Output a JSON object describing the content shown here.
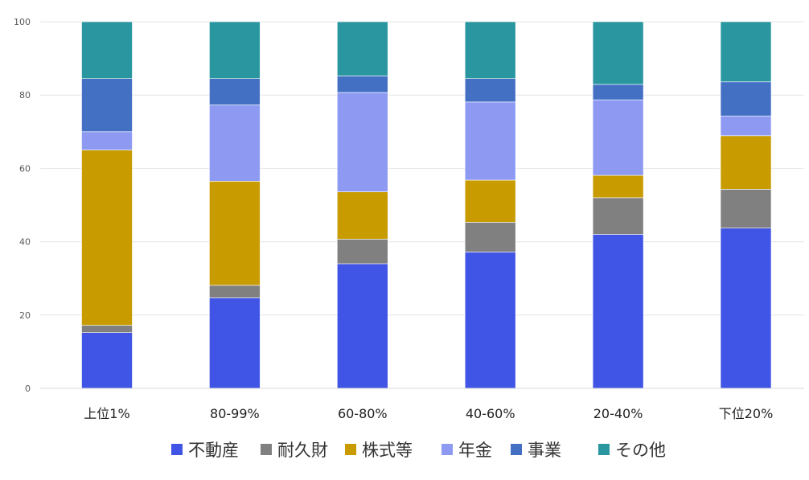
{
  "chart_data": {
    "type": "bar",
    "stacked": true,
    "title": "",
    "xlabel": "",
    "ylabel": "",
    "ylim": [
      0,
      100
    ],
    "yticks": [
      "0",
      "20",
      "40",
      "60",
      "80",
      "100"
    ],
    "grid": true,
    "legend_position": "bottom",
    "categories": [
      "上位1%",
      "80-99%",
      "60-80%",
      "40-60%",
      "20-40%",
      "下位20%"
    ],
    "series": [
      {
        "name": "不動産",
        "color": "#4055e5",
        "values": [
          15.2,
          24.7,
          34.0,
          37.2,
          42.0,
          43.7
        ]
      },
      {
        "name": "耐久財",
        "color": "#808080",
        "values": [
          2.0,
          3.4,
          6.7,
          8.1,
          10.0,
          10.6
        ]
      },
      {
        "name": "株式等",
        "color": "#c89b00",
        "values": [
          47.8,
          28.4,
          12.9,
          11.5,
          6.1,
          14.6
        ]
      },
      {
        "name": "年金",
        "color": "#8e9af2",
        "values": [
          5.0,
          20.8,
          27.1,
          21.3,
          20.6,
          5.4
        ]
      },
      {
        "name": "事業",
        "color": "#4470c4",
        "values": [
          14.5,
          7.2,
          4.5,
          6.4,
          4.2,
          9.3
        ]
      },
      {
        "name": "その他",
        "color": "#2a97a0",
        "values": [
          15.5,
          15.5,
          14.8,
          15.5,
          17.1,
          16.4
        ]
      }
    ]
  }
}
